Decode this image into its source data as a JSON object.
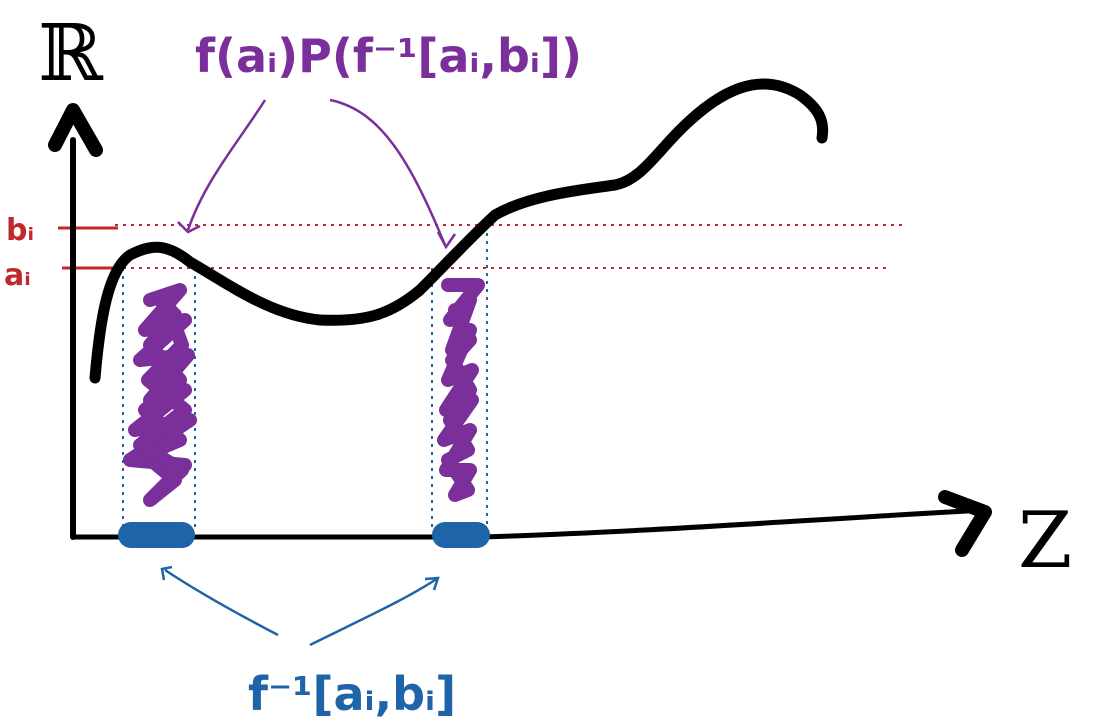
{
  "labels": {
    "y_axis": "ℝ",
    "x_axis": "Z",
    "b_i": "bᵢ",
    "a_i": "aᵢ",
    "top_formula": "f(aᵢ)P(f⁻¹[aᵢ,bᵢ])",
    "bottom_formula": "f⁻¹[aᵢ,bᵢ]"
  },
  "colors": {
    "curve": "#000000",
    "axes": "#000000",
    "purple": "#7b2f9b",
    "blue": "#1f63a8",
    "red": "#c0282c"
  }
}
